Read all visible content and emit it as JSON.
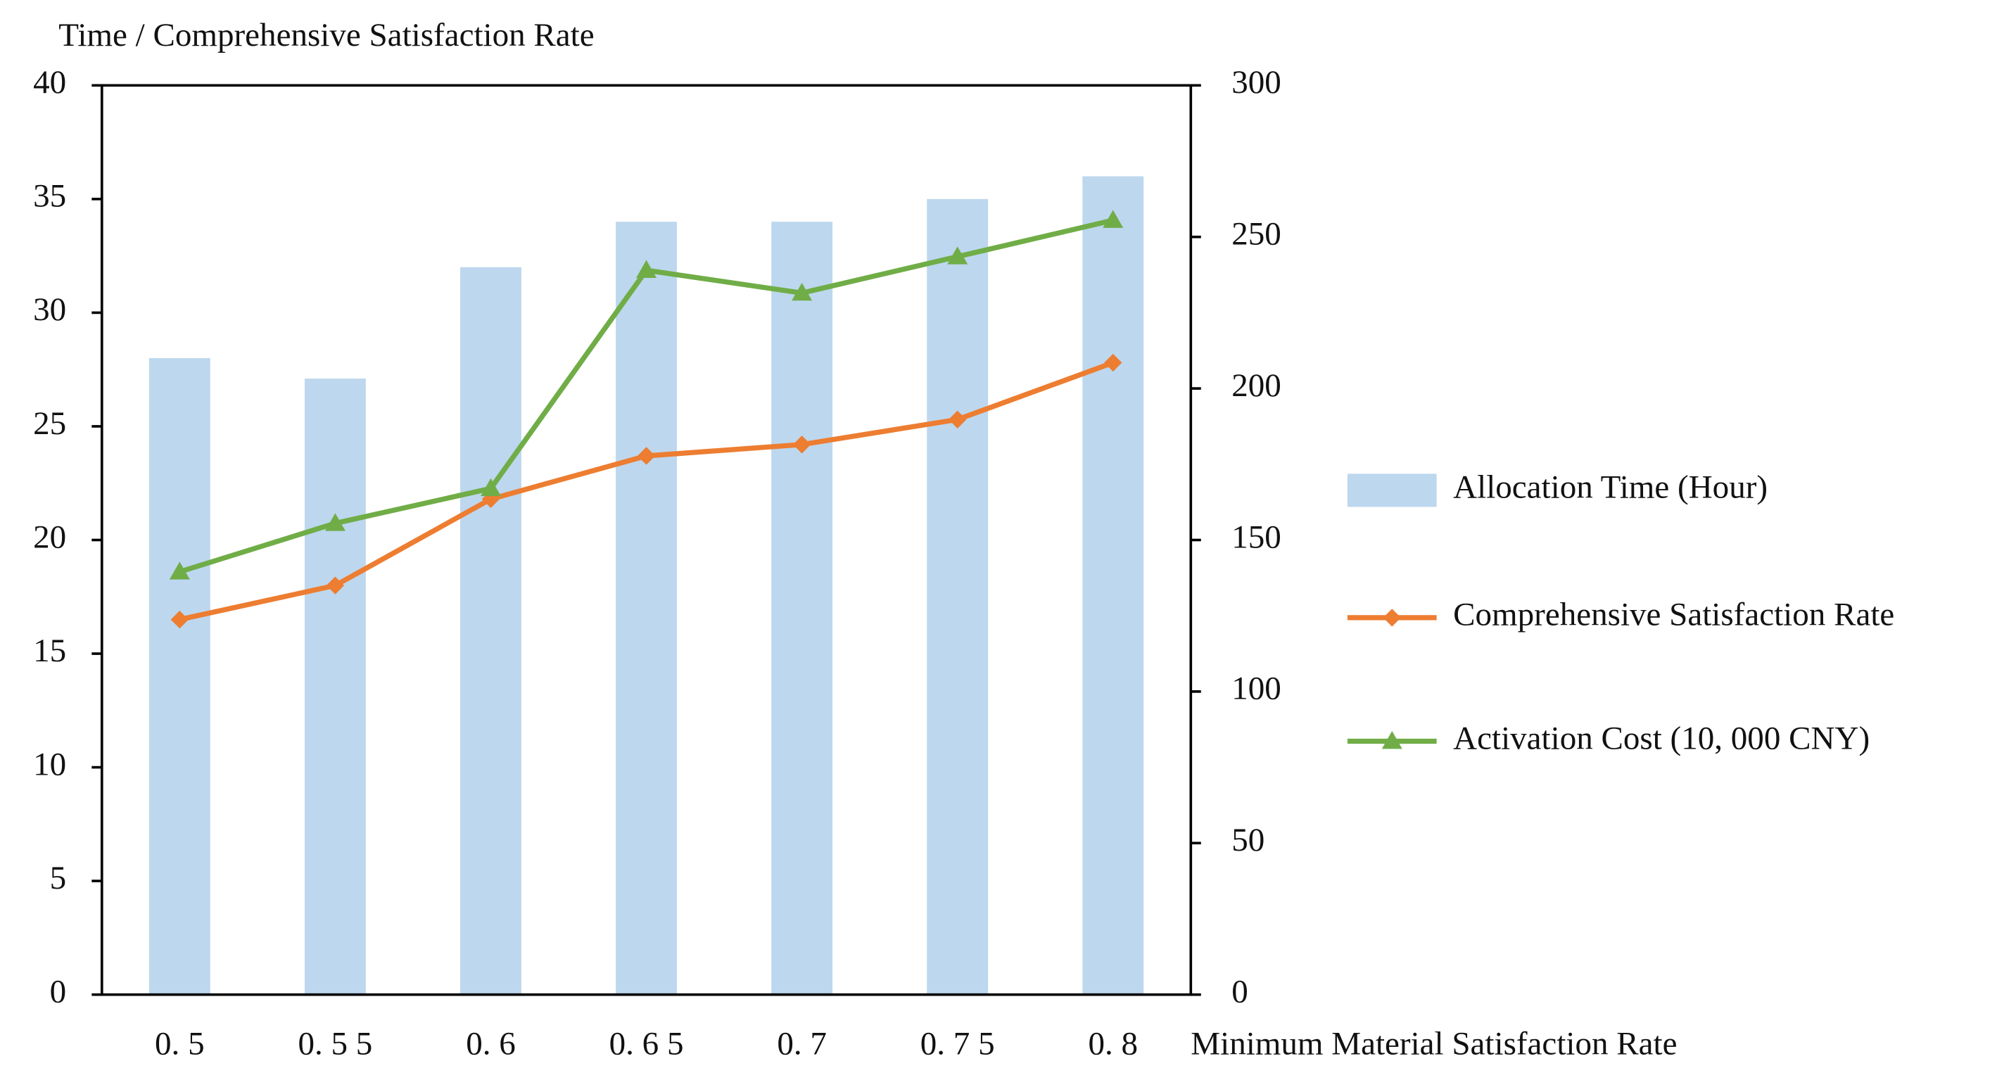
{
  "chart_data": {
    "type": "bar",
    "y_title": "Time / Comprehensive Satisfaction Rate",
    "x_title": "Minimum Material Satisfaction Rate",
    "categories": [
      "0. 5",
      "0. 5 5",
      "0. 6",
      "0. 6 5",
      "0. 7",
      "0. 7 5",
      "0. 8"
    ],
    "series": [
      {
        "name": "Allocation Time (Hour)",
        "type": "bar",
        "color": "#bdd7ee",
        "values": [
          28,
          27.1,
          32,
          34,
          34,
          35,
          36
        ]
      },
      {
        "name": "Comprehensive Satisfaction Rate",
        "type": "line",
        "marker": "diamond",
        "color": "#ed7d31",
        "values": [
          16.5,
          18,
          21.8,
          23.7,
          24.2,
          25.3,
          27.8
        ]
      },
      {
        "name": "Activation Cost (10, 000 CNY)",
        "type": "line",
        "marker": "triangle",
        "axis": "y2",
        "color": "#70ad47",
        "values": [
          139.5,
          155.5,
          167,
          239,
          231.5,
          243.5,
          255.5
        ]
      }
    ],
    "ylim": [
      0,
      40
    ],
    "yticks": [
      0,
      5,
      10,
      15,
      20,
      25,
      30,
      35,
      40
    ],
    "y2lim": [
      0,
      300
    ],
    "y2ticks": [
      0,
      50,
      100,
      150,
      200,
      250,
      300
    ],
    "legend": "right"
  }
}
